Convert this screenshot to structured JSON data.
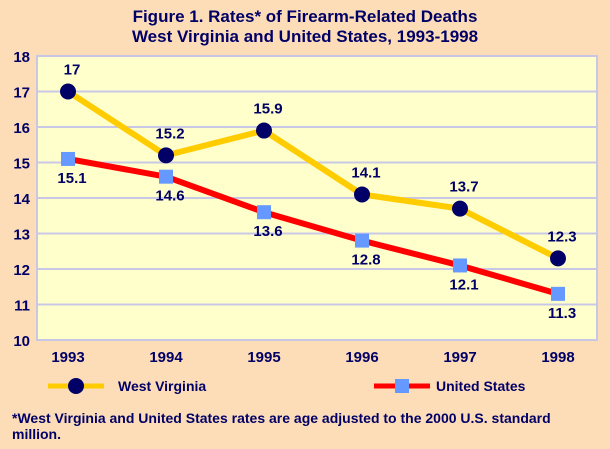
{
  "chart_data": {
    "type": "line",
    "title": "Figure 1. Rates* of Firearm-Related Deaths",
    "subtitle": "West Virginia and United States, 1993-1998",
    "categories": [
      "1993",
      "1994",
      "1995",
      "1996",
      "1997",
      "1998"
    ],
    "ylim": [
      10,
      18
    ],
    "yticks": [
      10,
      11,
      12,
      13,
      14,
      15,
      16,
      17,
      18
    ],
    "grid": true,
    "legend": "bottom",
    "series": [
      {
        "name": "West Virginia",
        "values": [
          17,
          15.2,
          15.9,
          14.1,
          13.7,
          12.3
        ],
        "labels": [
          "17",
          "15.2",
          "15.9",
          "14.1",
          "13.7",
          "12.3"
        ],
        "line_color": "#FFCC00",
        "marker_color": "#000066",
        "marker": "circle"
      },
      {
        "name": "United States",
        "values": [
          15.1,
          14.6,
          13.6,
          12.8,
          12.1,
          11.3
        ],
        "labels": [
          "15.1",
          "14.6",
          "13.6",
          "12.8",
          "12.1",
          "11.3"
        ],
        "line_color": "#FF0000",
        "marker_color": "#6699FF",
        "marker": "square"
      }
    ],
    "footnote": "*West Virginia and United States rates are age adjusted to the 2000 U.S. standard million."
  },
  "colors": {
    "background": "#FDDDB8",
    "plot_area": "#FFFFCC",
    "text": "#000066",
    "grid": "#C8C8E6"
  }
}
